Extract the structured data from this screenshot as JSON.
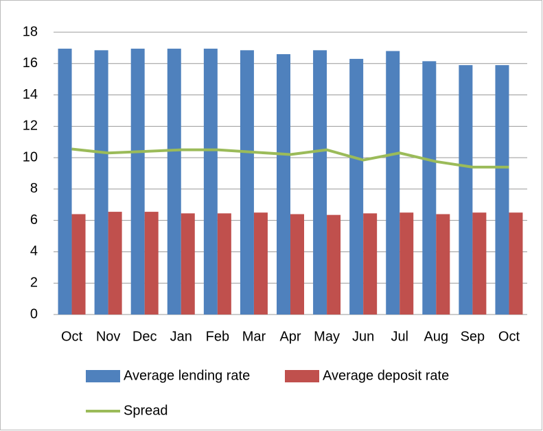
{
  "chart_data": {
    "type": "bar_line",
    "categories": [
      "Oct",
      "Nov",
      "Dec",
      "Jan",
      "Feb",
      "Mar",
      "Apr",
      "May",
      "Jun",
      "Jul",
      "Aug",
      "Sep",
      "Oct"
    ],
    "series": [
      {
        "name": "Average lending rate",
        "type": "bar",
        "color": "#4f81bd",
        "values": [
          16.95,
          16.85,
          16.95,
          16.95,
          16.95,
          16.85,
          16.6,
          16.85,
          16.3,
          16.8,
          16.15,
          15.9,
          15.9
        ]
      },
      {
        "name": "Average deposit rate",
        "type": "bar",
        "color": "#c0504d",
        "values": [
          6.4,
          6.55,
          6.55,
          6.45,
          6.45,
          6.5,
          6.4,
          6.35,
          6.45,
          6.5,
          6.4,
          6.5,
          6.5
        ]
      },
      {
        "name": "Spread",
        "type": "line",
        "color": "#9bbb59",
        "values": [
          10.55,
          10.3,
          10.4,
          10.5,
          10.5,
          10.35,
          10.2,
          10.5,
          9.85,
          10.3,
          9.75,
          9.4,
          9.4
        ]
      }
    ],
    "ylim": [
      0,
      18
    ],
    "yticks": [
      0,
      2,
      4,
      6,
      8,
      10,
      12,
      14,
      16,
      18
    ],
    "grid": true,
    "legend": "bottom"
  }
}
